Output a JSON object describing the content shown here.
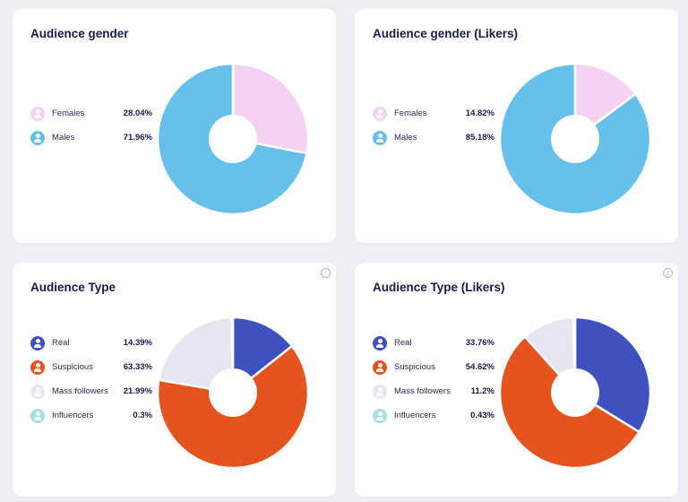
{
  "chart_data": [
    {
      "type": "pie",
      "title": "Audience gender",
      "categories": [
        "Females",
        "Males"
      ],
      "values": [
        28.04,
        71.96
      ],
      "labels": [
        "28.04%",
        "71.96%"
      ],
      "colors": [
        "#f5d2f2",
        "#67c0eb"
      ],
      "info_icon": false
    },
    {
      "type": "pie",
      "title": "Audience gender (Likers)",
      "categories": [
        "Females",
        "Males"
      ],
      "values": [
        14.82,
        85.18
      ],
      "labels": [
        "14.82%",
        "85.18%"
      ],
      "colors": [
        "#f5d2f2",
        "#67c0eb"
      ],
      "info_icon": false
    },
    {
      "type": "pie",
      "title": "Audience Type",
      "categories": [
        "Real",
        "Suspicious",
        "Mass followers",
        "Influencers"
      ],
      "values": [
        14.39,
        63.33,
        21.99,
        0.3
      ],
      "labels": [
        "14.39%",
        "63.33%",
        "21.99%",
        "0.3%"
      ],
      "colors": [
        "#3e51bf",
        "#e5531f",
        "#e4e6f2",
        "#a6dfe0"
      ],
      "info_icon": true
    },
    {
      "type": "pie",
      "title": "Audience Type (Likers)",
      "categories": [
        "Real",
        "Suspicious",
        "Mass followers",
        "Influencers"
      ],
      "values": [
        33.76,
        54.62,
        11.2,
        0.43
      ],
      "labels": [
        "33.76%",
        "54.62%",
        "11.2%",
        "0.43%"
      ],
      "colors": [
        "#3e51bf",
        "#e5531f",
        "#e4e6f2",
        "#a6dfe0"
      ],
      "info_icon": true
    }
  ]
}
